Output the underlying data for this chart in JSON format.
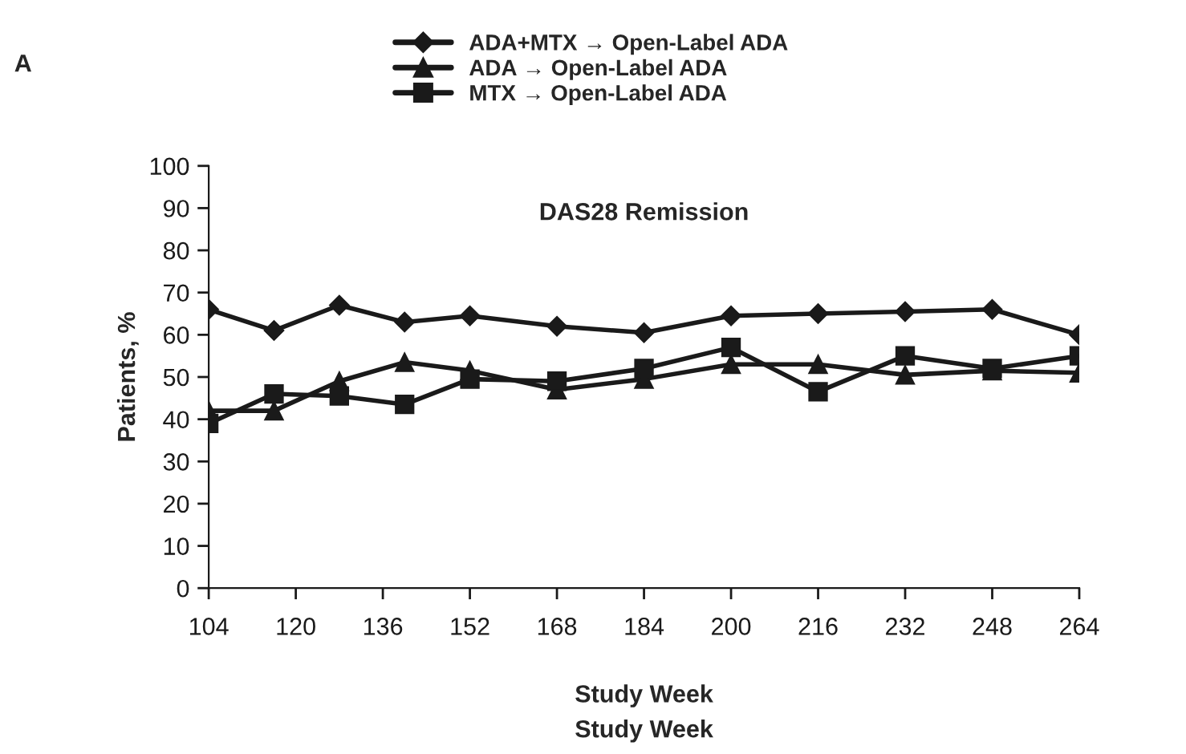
{
  "chart_data": {
    "type": "line",
    "title": "DAS28 Remission",
    "xlabel": "Study Week",
    "ylabel": "Patients, %",
    "annotations": [
      "A",
      "Study Week"
    ],
    "xlim": [
      104,
      264
    ],
    "xticks": [
      104,
      120,
      136,
      152,
      168,
      184,
      200,
      216,
      232,
      248,
      264
    ],
    "ylim": [
      0,
      100
    ],
    "yticks": [
      0,
      10,
      20,
      30,
      40,
      50,
      60,
      70,
      80,
      90,
      100
    ],
    "grid": false,
    "legend": "top",
    "line_style": "solid",
    "series": [
      {
        "name": "ADA+MTX → Open-Label ADA",
        "color": "#1a1a1a",
        "marker": "diamond",
        "x": [
          104,
          116,
          128,
          140,
          152,
          168,
          184,
          200,
          216,
          232,
          248,
          264
        ],
        "values": [
          66,
          61,
          67,
          63,
          64.5,
          62,
          60.5,
          64.5,
          65,
          65.5,
          66,
          60
        ]
      },
      {
        "name": "ADA → Open-Label ADA",
        "color": "#1a1a1a",
        "marker": "triangle",
        "x": [
          104,
          116,
          128,
          140,
          152,
          168,
          184,
          200,
          216,
          232,
          248,
          264
        ],
        "values": [
          42,
          42,
          49,
          53.5,
          51.5,
          47,
          49.5,
          53,
          53,
          50.5,
          51.5,
          51
        ]
      },
      {
        "name": "MTX → Open-Label ADA",
        "color": "#1a1a1a",
        "marker": "square",
        "x": [
          104,
          116,
          128,
          140,
          152,
          168,
          184,
          200,
          216,
          232,
          248,
          264
        ],
        "values": [
          39,
          46,
          45.5,
          43.5,
          49.5,
          49,
          52,
          57,
          46.5,
          55,
          52,
          55
        ]
      }
    ]
  }
}
